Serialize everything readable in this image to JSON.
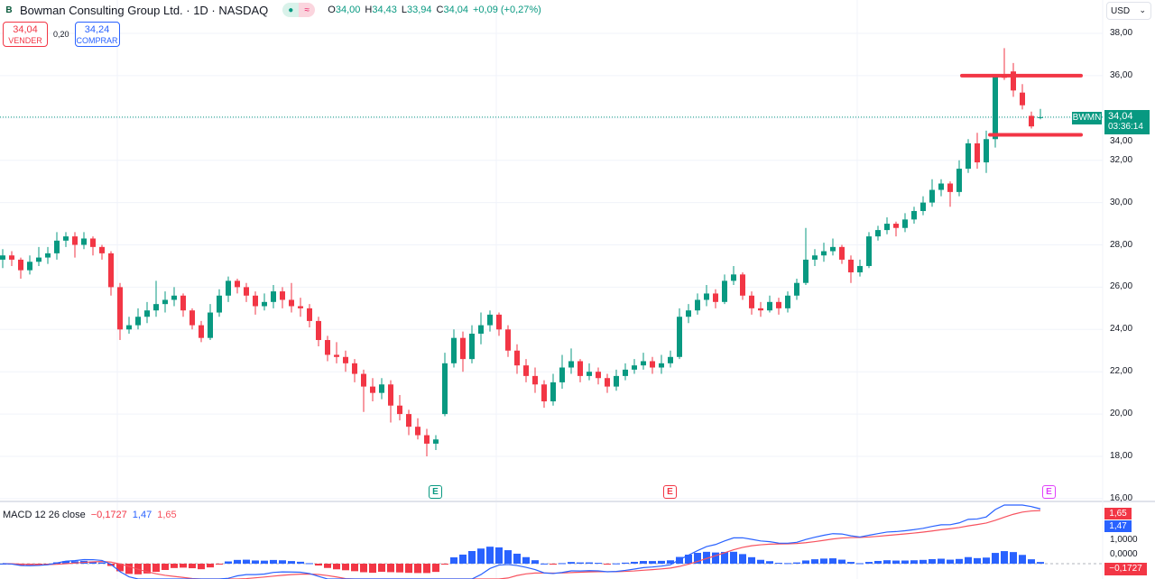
{
  "header": {
    "logo_letter": "B",
    "title": "Bowman Consulting Group Ltd. · 1D · NASDAQ",
    "status_icons": [
      "market-open-dot-icon",
      "delayed-data-icon"
    ],
    "ohlc": {
      "o_label": "O",
      "o": "34,00",
      "h_label": "H",
      "h": "34,43",
      "l_label": "L",
      "l": "33,94",
      "c_label": "C",
      "c": "34,04",
      "change": "+0,09 (+0,27%)"
    }
  },
  "trade": {
    "sell_price": "34,04",
    "sell_label": "VENDER",
    "spread": "0,20",
    "buy_price": "34,24",
    "buy_label": "COMPRAR"
  },
  "currency": "USD",
  "price_axis": [
    "38,00",
    "36,00",
    "34,00",
    "32,00",
    "30,00",
    "28,00",
    "26,00",
    "24,00",
    "22,00",
    "20,00",
    "18,00",
    "16,00"
  ],
  "last_price": {
    "symbol": "BWMN",
    "price": "34,04",
    "countdown": "03:36:14"
  },
  "earnings_markers": [
    "E",
    "E",
    "E"
  ],
  "macd": {
    "label": "MACD 12 26 close",
    "hist": "−0,1727",
    "macd": "1,47",
    "signal": "1,65",
    "axis": [
      "1,0000",
      "0,0000"
    ]
  },
  "colors": {
    "up": "#089981",
    "down": "#f23645",
    "macd": "#2962ff",
    "signal": "#f7525f",
    "level_lines": "#f23645",
    "earn_up": "#089981",
    "earn_down": "#f23645",
    "earn_future": "#e040fb"
  },
  "chart_data": {
    "type": "candlestick",
    "ylim": [
      16,
      38
    ],
    "levels": [
      36.0,
      33.2
    ],
    "last": 34.04,
    "ohlc": [
      [
        27.3,
        27.8,
        26.9,
        27.5
      ],
      [
        27.5,
        27.7,
        27.0,
        27.3
      ],
      [
        27.3,
        27.4,
        26.4,
        26.8
      ],
      [
        26.8,
        27.5,
        26.6,
        27.2
      ],
      [
        27.2,
        27.9,
        27.0,
        27.4
      ],
      [
        27.4,
        27.9,
        27.1,
        27.6
      ],
      [
        27.6,
        28.6,
        27.3,
        28.2
      ],
      [
        28.2,
        28.6,
        27.9,
        28.4
      ],
      [
        28.4,
        28.6,
        27.4,
        28.0
      ],
      [
        28.0,
        28.6,
        27.8,
        28.3
      ],
      [
        28.3,
        28.4,
        27.5,
        27.9
      ],
      [
        27.9,
        28.0,
        27.3,
        27.6
      ],
      [
        27.6,
        27.7,
        25.6,
        26.0
      ],
      [
        26.0,
        26.2,
        23.5,
        24.0
      ],
      [
        24.0,
        24.6,
        23.8,
        24.2
      ],
      [
        24.2,
        25.0,
        24.0,
        24.6
      ],
      [
        24.6,
        25.3,
        24.3,
        24.9
      ],
      [
        24.9,
        26.3,
        24.6,
        25.2
      ],
      [
        25.2,
        25.8,
        24.8,
        25.4
      ],
      [
        25.4,
        26.0,
        25.1,
        25.6
      ],
      [
        25.6,
        25.7,
        24.6,
        24.9
      ],
      [
        24.9,
        25.0,
        24.0,
        24.2
      ],
      [
        24.2,
        24.4,
        23.4,
        23.6
      ],
      [
        23.6,
        25.2,
        23.5,
        24.8
      ],
      [
        24.8,
        25.9,
        24.6,
        25.6
      ],
      [
        25.6,
        26.5,
        25.3,
        26.3
      ],
      [
        26.3,
        26.4,
        25.7,
        26.0
      ],
      [
        26.0,
        26.2,
        25.3,
        25.6
      ],
      [
        25.6,
        25.8,
        24.7,
        25.1
      ],
      [
        25.1,
        25.7,
        24.9,
        25.3
      ],
      [
        25.3,
        26.1,
        25.0,
        25.8
      ],
      [
        25.8,
        26.0,
        25.0,
        25.4
      ],
      [
        25.4,
        26.2,
        24.8,
        25.1
      ],
      [
        25.1,
        25.5,
        24.6,
        25.0
      ],
      [
        25.0,
        25.2,
        24.1,
        24.4
      ],
      [
        24.4,
        24.6,
        23.2,
        23.5
      ],
      [
        23.5,
        23.7,
        22.5,
        22.8
      ],
      [
        22.8,
        23.4,
        22.4,
        22.7
      ],
      [
        22.7,
        23.0,
        22.0,
        22.4
      ],
      [
        22.4,
        22.6,
        21.5,
        21.9
      ],
      [
        21.9,
        22.1,
        20.1,
        21.3
      ],
      [
        21.3,
        21.7,
        20.6,
        21.0
      ],
      [
        21.0,
        21.7,
        20.7,
        21.4
      ],
      [
        21.4,
        21.6,
        19.6,
        20.4
      ],
      [
        20.4,
        20.9,
        19.7,
        20.0
      ],
      [
        20.0,
        20.2,
        19.0,
        19.4
      ],
      [
        19.4,
        19.8,
        18.8,
        19.0
      ],
      [
        19.0,
        19.3,
        18.0,
        18.6
      ],
      [
        18.6,
        19.0,
        18.3,
        18.8
      ],
      [
        20.0,
        22.9,
        19.9,
        22.4
      ],
      [
        22.4,
        24.0,
        22.2,
        23.6
      ],
      [
        23.6,
        23.9,
        22.0,
        22.6
      ],
      [
        22.6,
        24.2,
        22.4,
        23.8
      ],
      [
        23.8,
        24.8,
        23.3,
        24.2
      ],
      [
        24.2,
        24.9,
        23.9,
        24.7
      ],
      [
        24.7,
        24.8,
        23.7,
        24.0
      ],
      [
        24.0,
        24.2,
        22.7,
        23.0
      ],
      [
        23.0,
        23.3,
        21.9,
        22.3
      ],
      [
        22.3,
        22.6,
        21.5,
        21.8
      ],
      [
        21.8,
        22.2,
        21.0,
        21.4
      ],
      [
        21.4,
        21.6,
        20.3,
        20.6
      ],
      [
        20.6,
        21.9,
        20.4,
        21.5
      ],
      [
        21.5,
        22.8,
        21.2,
        22.2
      ],
      [
        22.2,
        23.1,
        21.9,
        22.5
      ],
      [
        22.5,
        22.6,
        21.5,
        21.8
      ],
      [
        21.8,
        22.4,
        21.6,
        22.0
      ],
      [
        22.0,
        22.2,
        21.4,
        21.7
      ],
      [
        21.7,
        21.9,
        21.0,
        21.3
      ],
      [
        21.3,
        22.1,
        21.1,
        21.8
      ],
      [
        21.8,
        22.4,
        21.6,
        22.1
      ],
      [
        22.1,
        22.6,
        21.9,
        22.3
      ],
      [
        22.3,
        22.9,
        22.1,
        22.5
      ],
      [
        22.5,
        22.7,
        21.9,
        22.2
      ],
      [
        22.2,
        22.8,
        21.9,
        22.4
      ],
      [
        22.4,
        23.0,
        22.2,
        22.7
      ],
      [
        22.7,
        25.0,
        22.6,
        24.6
      ],
      [
        24.6,
        25.2,
        24.3,
        24.9
      ],
      [
        24.9,
        25.7,
        24.7,
        25.4
      ],
      [
        25.4,
        26.1,
        25.1,
        25.7
      ],
      [
        25.7,
        25.9,
        25.0,
        25.3
      ],
      [
        25.3,
        26.6,
        25.2,
        26.3
      ],
      [
        26.3,
        27.0,
        26.1,
        26.6
      ],
      [
        26.6,
        26.7,
        25.4,
        25.6
      ],
      [
        25.6,
        25.8,
        24.7,
        25.0
      ],
      [
        25.0,
        25.3,
        24.6,
        24.9
      ],
      [
        24.9,
        25.6,
        24.8,
        25.3
      ],
      [
        25.3,
        25.5,
        24.7,
        25.0
      ],
      [
        25.0,
        25.8,
        24.8,
        25.6
      ],
      [
        25.6,
        26.4,
        25.4,
        26.2
      ],
      [
        26.2,
        28.8,
        26.1,
        27.3
      ],
      [
        27.3,
        27.8,
        27.0,
        27.5
      ],
      [
        27.5,
        28.1,
        27.2,
        27.7
      ],
      [
        27.7,
        28.3,
        27.5,
        27.9
      ],
      [
        27.9,
        28.0,
        27.1,
        27.3
      ],
      [
        27.3,
        27.5,
        26.2,
        26.7
      ],
      [
        26.7,
        27.3,
        26.5,
        27.0
      ],
      [
        27.0,
        28.6,
        26.9,
        28.4
      ],
      [
        28.4,
        28.9,
        28.2,
        28.7
      ],
      [
        28.7,
        29.3,
        28.5,
        29.0
      ],
      [
        29.0,
        29.1,
        28.4,
        28.8
      ],
      [
        28.8,
        29.5,
        28.6,
        29.2
      ],
      [
        29.2,
        29.8,
        29.0,
        29.6
      ],
      [
        29.6,
        30.3,
        29.4,
        30.0
      ],
      [
        30.0,
        31.1,
        29.8,
        30.6
      ],
      [
        30.6,
        31.1,
        30.3,
        30.9
      ],
      [
        30.9,
        31.0,
        29.8,
        30.5
      ],
      [
        30.5,
        32.0,
        30.3,
        31.6
      ],
      [
        31.6,
        33.0,
        31.4,
        32.8
      ],
      [
        32.8,
        33.3,
        31.6,
        31.9
      ],
      [
        31.9,
        33.4,
        31.4,
        33.0
      ],
      [
        33.0,
        36.0,
        32.6,
        36.0
      ],
      [
        36.0,
        37.3,
        35.8,
        35.9
      ],
      [
        36.2,
        36.6,
        35.0,
        35.3
      ],
      [
        35.2,
        35.6,
        34.4,
        34.6
      ],
      [
        34.1,
        34.3,
        33.5,
        33.6
      ],
      [
        34.0,
        34.43,
        33.94,
        34.04
      ]
    ]
  }
}
